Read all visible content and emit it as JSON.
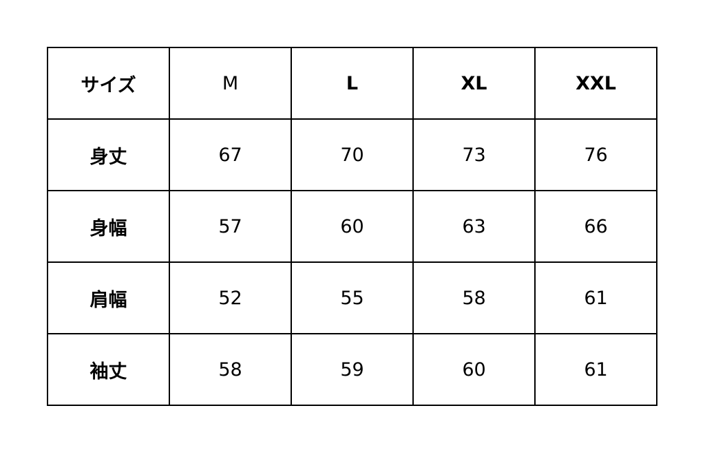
{
  "table": {
    "header": [
      "サイズ",
      "M",
      "L",
      "XL",
      "XXL"
    ],
    "header_bold": [
      true,
      false,
      true,
      true,
      true
    ],
    "rows": [
      {
        "label": "身丈",
        "values": [
          "67",
          "70",
          "73",
          "76"
        ]
      },
      {
        "label": "身幅",
        "values": [
          "57",
          "60",
          "63",
          "66"
        ]
      },
      {
        "label": "肩幅",
        "values": [
          "52",
          "55",
          "58",
          "61"
        ]
      },
      {
        "label": "袖丈",
        "values": [
          "58",
          "59",
          "60",
          "61"
        ]
      }
    ]
  }
}
